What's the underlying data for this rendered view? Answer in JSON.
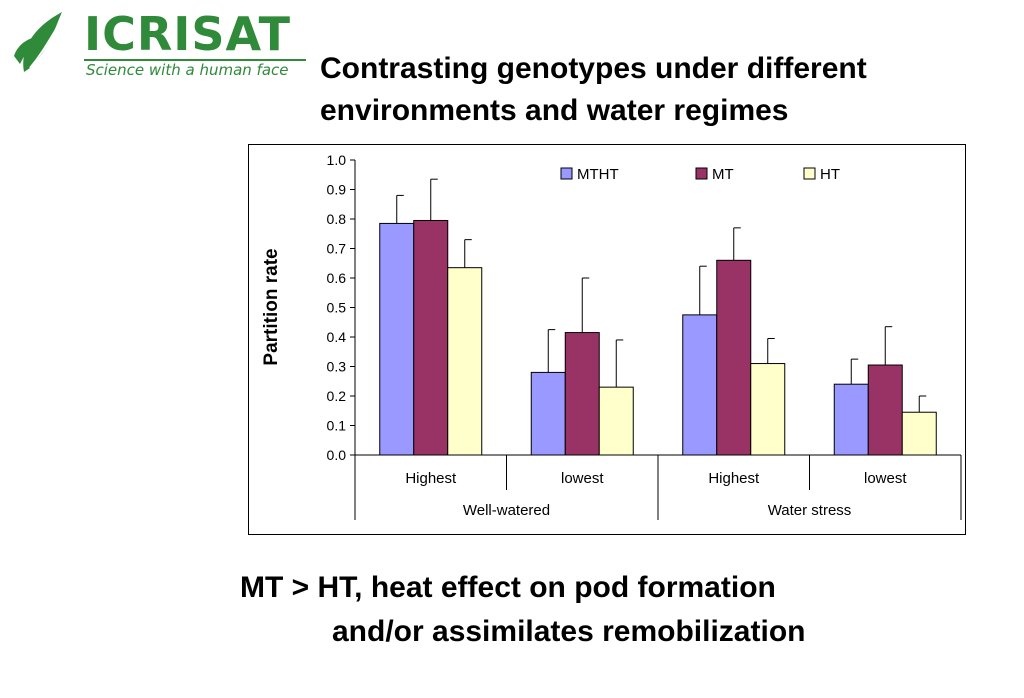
{
  "logo": {
    "wordmark": "ICRISAT",
    "tagline": "Science with a human face",
    "brand_color": "#2f8a3a"
  },
  "title": "Contrasting genotypes under different environments and water regimes",
  "caption": {
    "line1": "MT > HT, heat effect on pod formation",
    "line2": "and/or assimilates remobilization"
  },
  "chart_data": {
    "type": "bar",
    "ylabel": "Partition rate",
    "ylim": [
      0,
      1.0
    ],
    "yticks": [
      "0.0",
      "0.1",
      "0.2",
      "0.3",
      "0.4",
      "0.5",
      "0.6",
      "0.7",
      "0.8",
      "0.9",
      "1.0"
    ],
    "categories": [
      "Highest",
      "lowest",
      "Highest",
      "lowest"
    ],
    "groups": [
      "Well-watered",
      "Water stress"
    ],
    "legend_position": "top",
    "grid": false,
    "series": [
      {
        "name": "MTHT",
        "color": "#9999ff",
        "values": [
          0.785,
          0.28,
          0.475,
          0.24
        ],
        "error": [
          0.095,
          0.145,
          0.165,
          0.085
        ]
      },
      {
        "name": "MT",
        "color": "#993366",
        "values": [
          0.795,
          0.415,
          0.66,
          0.305
        ],
        "error": [
          0.14,
          0.185,
          0.11,
          0.13
        ]
      },
      {
        "name": "HT",
        "color": "#ffffcc",
        "values": [
          0.635,
          0.23,
          0.31,
          0.145
        ],
        "error": [
          0.095,
          0.16,
          0.085,
          0.055
        ]
      }
    ]
  }
}
